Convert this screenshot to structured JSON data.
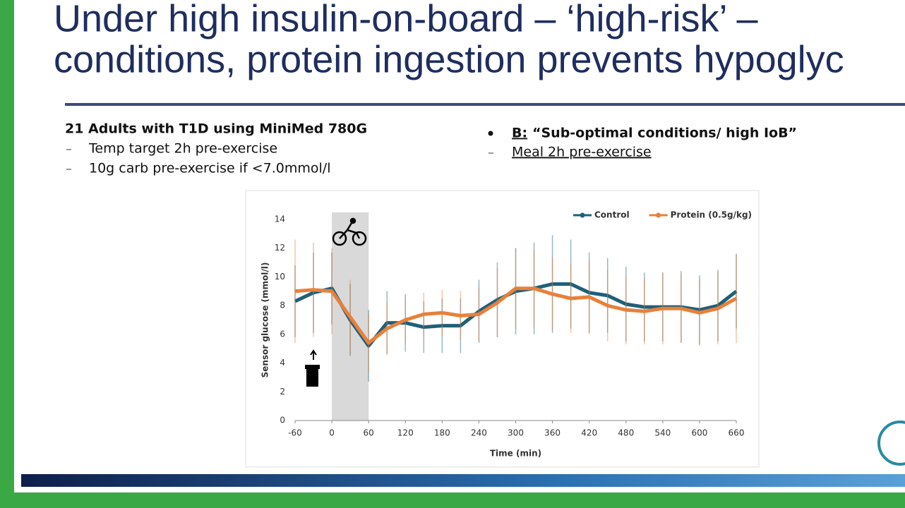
{
  "slide": {
    "title_lines": [
      "Under high insulin-on-board – ‘high-risk’ –",
      "conditions, protein ingestion prevents hypoglyc"
    ],
    "left_heading": "21 Adults with T1D using MiniMed 780G",
    "left_items": [
      "Temp target 2h pre-exercise",
      "10g carb pre-exercise if <7.0mmol/l"
    ],
    "right_label": "B:",
    "right_heading": "“Sub-optimal conditions/ high IoB”",
    "right_items": [
      "Meal 2h pre-exercise"
    ]
  },
  "chart_data": {
    "type": "line",
    "xlabel": "Time (min)",
    "ylabel": "Sensor glucose (mmol/l)",
    "x": [
      -60,
      -30,
      0,
      30,
      60,
      90,
      120,
      150,
      180,
      210,
      240,
      270,
      300,
      330,
      360,
      390,
      420,
      450,
      480,
      510,
      540,
      570,
      600,
      630,
      660
    ],
    "series": [
      {
        "name": "Control",
        "color": "#1f5f7a",
        "values": [
          8.3,
          8.9,
          9.2,
          7.0,
          5.2,
          6.8,
          6.8,
          6.5,
          6.6,
          6.6,
          7.6,
          8.4,
          9.0,
          9.2,
          9.5,
          9.5,
          8.9,
          8.7,
          8.1,
          7.9,
          7.9,
          7.9,
          7.7,
          8.0,
          9.0
        ],
        "errors": [
          2.5,
          2.8,
          2.5,
          2.5,
          2.5,
          2.2,
          2.0,
          1.8,
          1.9,
          1.9,
          2.2,
          2.6,
          3.0,
          3.2,
          3.4,
          3.1,
          2.8,
          2.6,
          2.6,
          2.4,
          2.4,
          2.5,
          2.4,
          2.5,
          2.6
        ]
      },
      {
        "name": "Protein (0.5g/kg)",
        "color": "#e8803a",
        "values": [
          9.0,
          9.1,
          9.0,
          7.2,
          5.4,
          6.4,
          7.0,
          7.4,
          7.5,
          7.3,
          7.4,
          8.2,
          9.2,
          9.2,
          8.8,
          8.5,
          8.6,
          8.0,
          7.7,
          7.6,
          7.8,
          7.8,
          7.5,
          7.8,
          8.5
        ],
        "errors": [
          3.6,
          3.3,
          3.0,
          2.6,
          2.0,
          1.8,
          1.6,
          1.5,
          1.6,
          1.7,
          1.9,
          2.4,
          2.8,
          2.7,
          2.5,
          2.4,
          2.6,
          2.5,
          2.4,
          2.3,
          2.5,
          2.4,
          2.3,
          2.5,
          3.1
        ]
      }
    ],
    "exercise_window": [
      0,
      60
    ],
    "xlim": [
      -60,
      660
    ],
    "xticks": [
      -60,
      0,
      60,
      120,
      180,
      240,
      300,
      360,
      420,
      480,
      540,
      600,
      660
    ],
    "ylim": [
      0,
      14
    ],
    "yticks": [
      0,
      2,
      4,
      6,
      8,
      10,
      12,
      14
    ],
    "legend": "top-right"
  }
}
